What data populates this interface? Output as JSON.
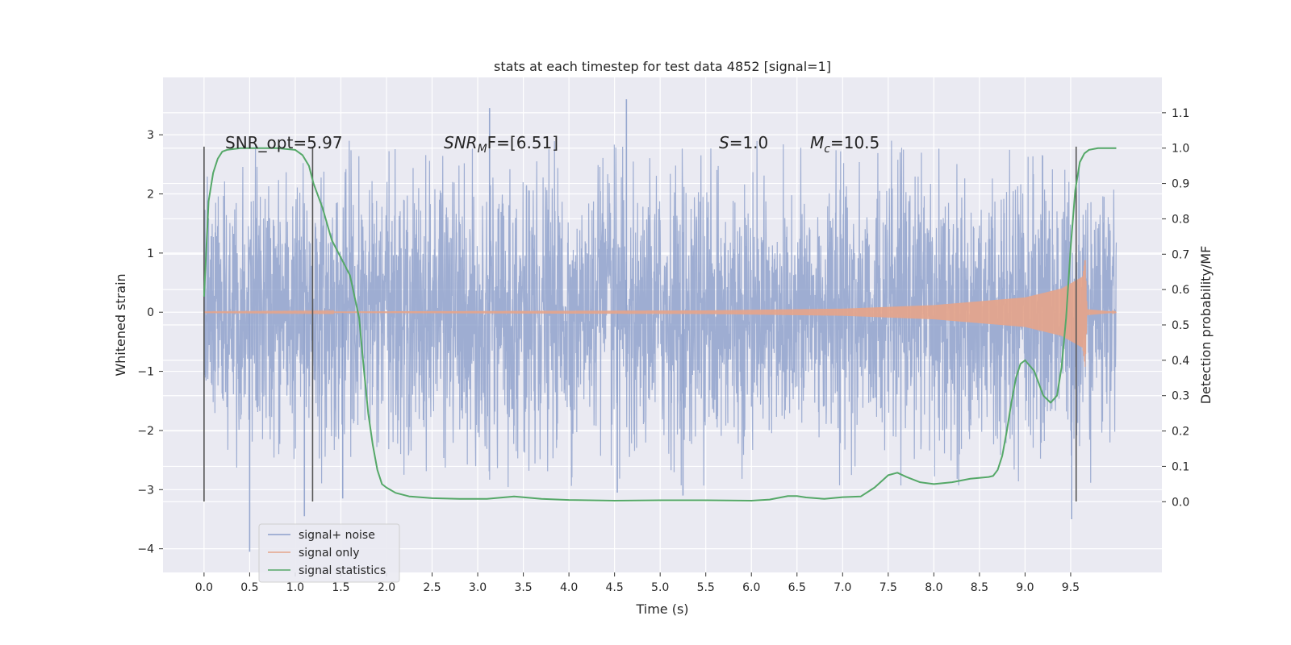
{
  "chart_data": {
    "type": "line",
    "title": "stats at each timestep for test data 4852 [signal=1]",
    "xlabel": "Time (s)",
    "ylabel_left": "Whitened strain",
    "ylabel_right": "Detection probability/MF",
    "xlim": [
      -0.45,
      10.5
    ],
    "ylim_left": [
      -4.4,
      3.97
    ],
    "ylim_right": [
      -0.2,
      1.2
    ],
    "x_ticks": [
      "0.0",
      "0.5",
      "1.0",
      "1.5",
      "2.0",
      "2.5",
      "3.0",
      "3.5",
      "4.0",
      "4.5",
      "5.0",
      "5.5",
      "6.0",
      "6.5",
      "7.0",
      "7.5",
      "8.0",
      "8.5",
      "9.0",
      "9.5"
    ],
    "y_ticks_left": [
      "3",
      "2",
      "1",
      "0",
      "−1",
      "−2",
      "−3",
      "−4"
    ],
    "y_ticks_right": [
      "1.1",
      "1.0",
      "0.9",
      "0.8",
      "0.7",
      "0.6",
      "0.5",
      "0.4",
      "0.3",
      "0.2",
      "0.1",
      "0.0"
    ],
    "grid": true,
    "legend_position": "lower-left",
    "annotations": {
      "snr_opt": "SNR_opt=5.97",
      "snr_mf_prefix": "SNR",
      "snr_mf_sub": "M",
      "snr_mf_suffix": "F=[6.51]",
      "s_label": "S",
      "s_value": "=1.0",
      "mc_label": "M",
      "mc_sub": "c",
      "mc_value": "=10.5"
    },
    "vlines": [
      {
        "x": 0.0,
        "ymin": -3.2,
        "ymax": 2.8
      },
      {
        "x": 1.19,
        "ymin": -3.2,
        "ymax": 2.8
      },
      {
        "x": 9.56,
        "ymin": -3.2,
        "ymax": 2.8
      }
    ],
    "series": [
      {
        "name": "signal+ noise",
        "color": "#8da0cb",
        "kind": "noise",
        "x_range": [
          0.0,
          10.0
        ],
        "typical_amplitude": 1.3,
        "peaks": [
          [
            0.5,
            -4.05
          ],
          [
            1.1,
            -3.45
          ],
          [
            3.13,
            3.45
          ],
          [
            4.63,
            3.6
          ],
          [
            9.51,
            -3.5
          ],
          [
            1.52,
            -3.15
          ],
          [
            4.53,
            -3.05
          ],
          [
            5.25,
            -3.1
          ]
        ]
      },
      {
        "name": "signal only",
        "color": "#e5a48a",
        "kind": "chirp",
        "x_range": [
          0.0,
          10.0
        ],
        "envelope": [
          [
            0.0,
            0.005
          ],
          [
            5.5,
            0.03
          ],
          [
            7.0,
            0.06
          ],
          [
            8.0,
            0.12
          ],
          [
            9.0,
            0.25
          ],
          [
            9.4,
            0.4
          ],
          [
            9.63,
            0.6
          ],
          [
            9.66,
            0.95
          ],
          [
            9.68,
            0.05
          ],
          [
            10.0,
            0.005
          ]
        ]
      },
      {
        "name": "signal statistics",
        "color": "#55a868",
        "axis": "right",
        "x": [
          0.0,
          0.05,
          0.1,
          0.15,
          0.2,
          0.25,
          0.4,
          0.6,
          0.8,
          1.0,
          1.08,
          1.15,
          1.2,
          1.3,
          1.4,
          1.5,
          1.6,
          1.7,
          1.75,
          1.8,
          1.85,
          1.9,
          1.95,
          2.0,
          2.1,
          2.25,
          2.5,
          2.8,
          3.1,
          3.4,
          3.7,
          4.0,
          4.5,
          5.0,
          5.5,
          6.0,
          6.2,
          6.4,
          6.5,
          6.6,
          6.8,
          7.0,
          7.2,
          7.35,
          7.5,
          7.6,
          7.7,
          7.85,
          8.0,
          8.2,
          8.4,
          8.6,
          8.65,
          8.7,
          8.75,
          8.8,
          8.85,
          8.9,
          8.95,
          9.0,
          9.1,
          9.2,
          9.28,
          9.35,
          9.4,
          9.45,
          9.5,
          9.55,
          9.6,
          9.65,
          9.7,
          9.8,
          10.0
        ],
        "y": [
          0.58,
          0.85,
          0.93,
          0.97,
          0.99,
          0.995,
          1.0,
          1.0,
          1.0,
          0.995,
          0.98,
          0.95,
          0.9,
          0.83,
          0.74,
          0.69,
          0.64,
          0.52,
          0.38,
          0.25,
          0.16,
          0.09,
          0.05,
          0.04,
          0.025,
          0.015,
          0.01,
          0.008,
          0.008,
          0.015,
          0.008,
          0.005,
          0.003,
          0.004,
          0.004,
          0.003,
          0.006,
          0.016,
          0.016,
          0.012,
          0.008,
          0.013,
          0.015,
          0.04,
          0.075,
          0.082,
          0.07,
          0.055,
          0.05,
          0.055,
          0.065,
          0.07,
          0.073,
          0.09,
          0.13,
          0.2,
          0.28,
          0.35,
          0.39,
          0.4,
          0.37,
          0.3,
          0.28,
          0.3,
          0.38,
          0.52,
          0.72,
          0.88,
          0.96,
          0.985,
          0.995,
          1.0,
          1.0
        ]
      }
    ]
  }
}
